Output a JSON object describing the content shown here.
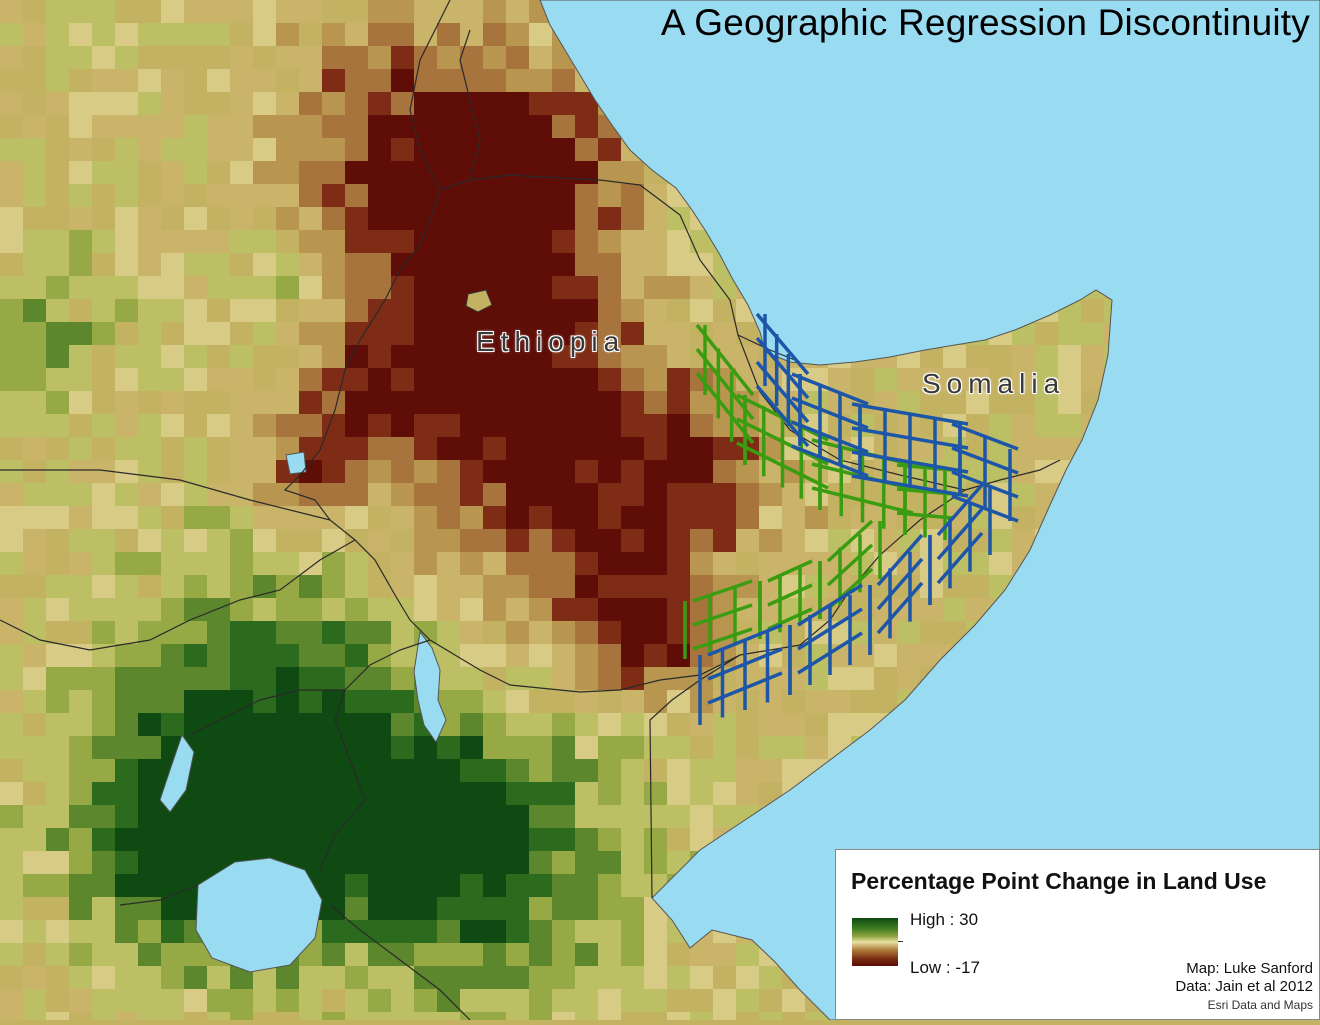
{
  "title": "A Geographic Regression Discontinuity",
  "labels": {
    "ethiopia": "Ethiopia",
    "somalia": "Somalia"
  },
  "legend": {
    "title": "Percentage Point Change in Land Use",
    "high_label": "High : 30",
    "low_label": "Low : -17",
    "high_value": 30,
    "low_value": -17
  },
  "credits": {
    "author": "Map: Luke Sanford",
    "data": "Data: Jain et al 2012",
    "basemap": "Esri Data and Maps"
  },
  "colors": {
    "water": "#99dbf0",
    "land_base": "#c4b263",
    "treatment_grid": "#3a9c10",
    "control_grid": "#1d56a8",
    "high": "#0c4a12",
    "low": "#5c0d06"
  }
}
